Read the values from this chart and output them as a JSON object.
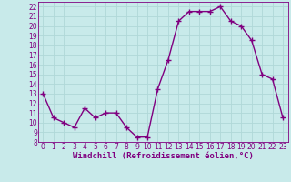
{
  "x": [
    0,
    1,
    2,
    3,
    4,
    5,
    6,
    7,
    8,
    9,
    10,
    11,
    12,
    13,
    14,
    15,
    16,
    17,
    18,
    19,
    20,
    21,
    22,
    23
  ],
  "y": [
    13,
    10.5,
    10,
    9.5,
    11.5,
    10.5,
    11,
    11,
    9.5,
    8.5,
    8.5,
    13.5,
    16.5,
    20.5,
    21.5,
    21.5,
    21.5,
    22,
    20.5,
    20,
    18.5,
    15,
    14.5,
    10.5
  ],
  "line_color": "#800080",
  "marker": "+",
  "marker_size": 4,
  "linewidth": 1.0,
  "background_color": "#c8eaea",
  "grid_color": "#b0d8d8",
  "xlabel": "Windchill (Refroidissement éolien,°C)",
  "xlabel_color": "#800080",
  "xlabel_fontsize": 6.5,
  "tick_color": "#800080",
  "tick_fontsize": 5.5,
  "ylim": [
    8,
    22.5
  ],
  "xlim": [
    -0.5,
    23.5
  ],
  "yticks": [
    8,
    9,
    10,
    11,
    12,
    13,
    14,
    15,
    16,
    17,
    18,
    19,
    20,
    21,
    22
  ],
  "xticks": [
    0,
    1,
    2,
    3,
    4,
    5,
    6,
    7,
    8,
    9,
    10,
    11,
    12,
    13,
    14,
    15,
    16,
    17,
    18,
    19,
    20,
    21,
    22,
    23
  ]
}
